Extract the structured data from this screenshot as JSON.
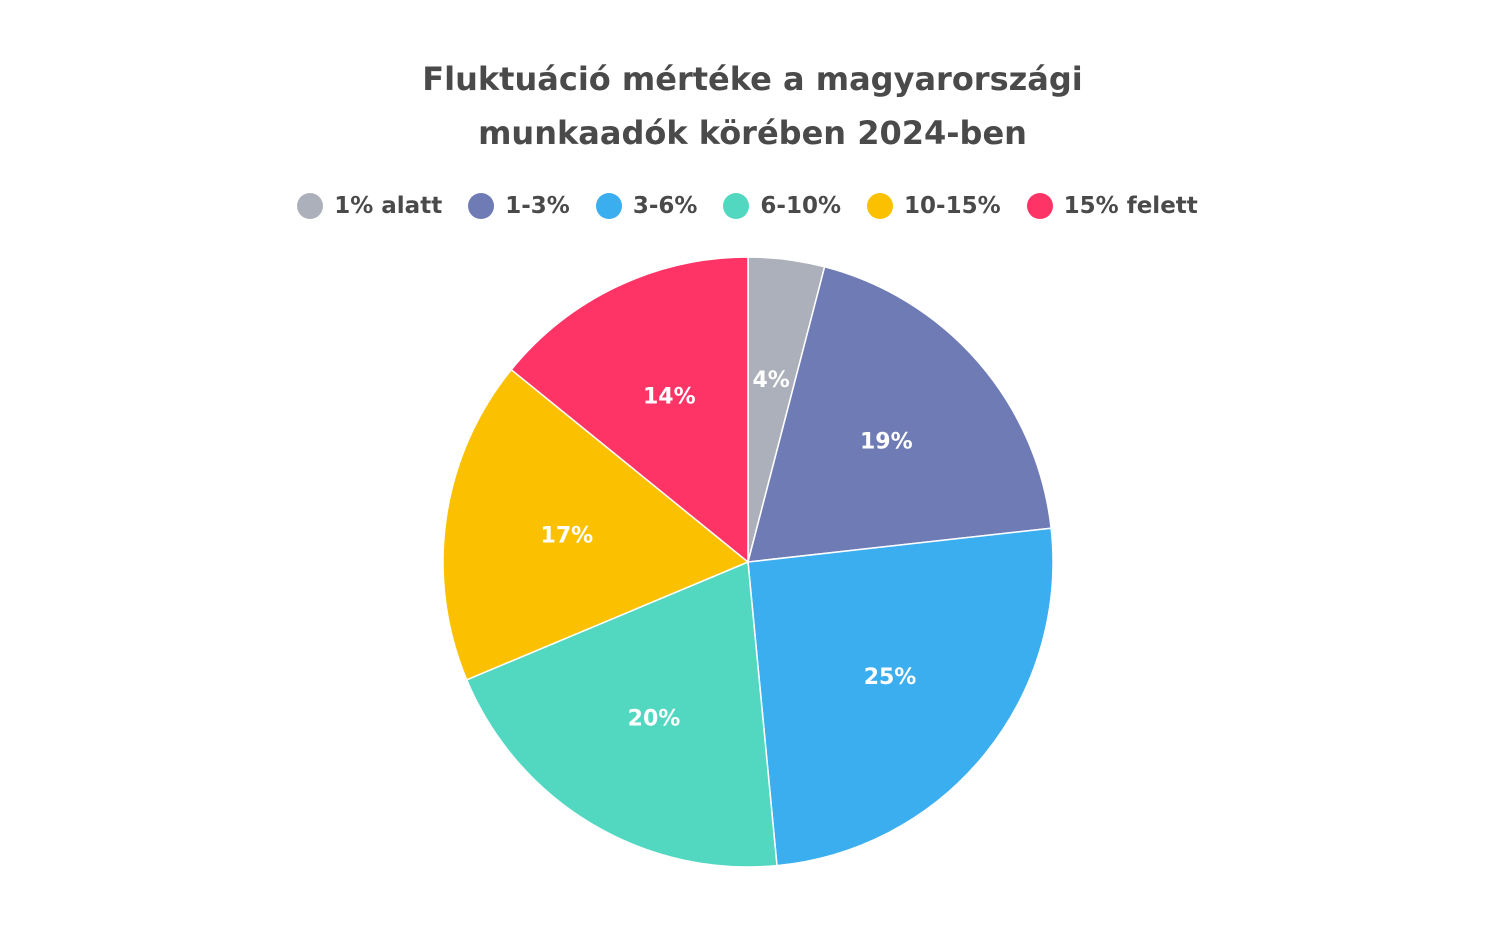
{
  "chart_data": {
    "type": "pie",
    "title": [
      "Fluktuáció mértéke a magyarországi",
      "munkaadók körében 2024-ben"
    ],
    "categories": [
      "1% alatt",
      "1-3%",
      "3-6%",
      "6-10%",
      "10-15%",
      "15% felett"
    ],
    "values": [
      4,
      19,
      25,
      20,
      17,
      14
    ],
    "value_labels": [
      "4%",
      "19%",
      "25%",
      "20%",
      "17%",
      "14%"
    ],
    "colors": [
      "#acb0ba",
      "#6e7bb4",
      "#3baef0",
      "#52d8c0",
      "#fbc100",
      "#ff3466"
    ],
    "legend_position": "top",
    "start_angle": "12 o'clock",
    "direction": "clockwise"
  }
}
